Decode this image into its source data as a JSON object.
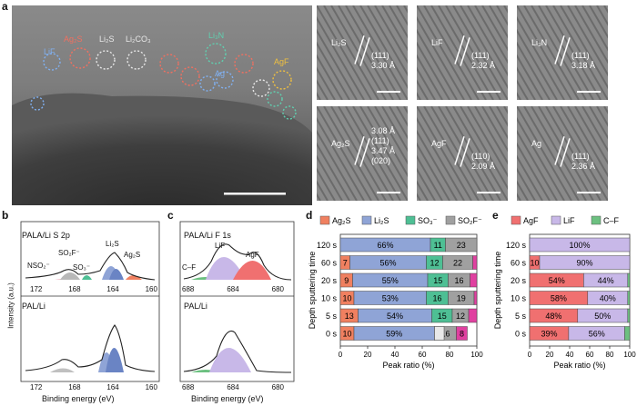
{
  "panel_labels": {
    "a": "a",
    "b": "b",
    "c": "c",
    "d": "d",
    "e": "e"
  },
  "panel_a": {
    "main_labels": [
      "Ag₂S",
      "Li₂S",
      "Li₂CO₃",
      "Li₃N",
      "LiF",
      "AgF",
      "Ag"
    ],
    "main_label_colors": [
      "#f07060",
      "#e8e8e8",
      "#e8e8e8",
      "#60d0b0",
      "#80b0f0",
      "#f0c040",
      "#80b0f0"
    ],
    "insets": [
      {
        "name": "Li₂S",
        "hkl": "(111)",
        "d": "3.30 Å"
      },
      {
        "name": "LiF",
        "hkl": "(111)",
        "d": "2.32 Å"
      },
      {
        "name": "Li₃N",
        "hkl": "(111)",
        "d": "3.18 Å"
      },
      {
        "name": "Ag₂S",
        "hkl": "(111)",
        "d": "3.08 Å",
        "hkl2": "(020)",
        "d2": "3.47 Å"
      },
      {
        "name": "AgF",
        "hkl": "(110)",
        "d": "2.09 Å"
      },
      {
        "name": "Ag",
        "hkl": "(111)",
        "d": "2.36 Å"
      }
    ]
  },
  "panel_b": {
    "title_top": "PALA/Li S 2p",
    "title_bottom": "PAL/Li",
    "peak_labels": [
      "NSO₂⁻",
      "SO₂F⁻",
      "SO₃⁻",
      "Li₂S",
      "Ag₂S"
    ],
    "ylabel": "Intensity (a.u.)",
    "xlabel": "Binding energy (eV)",
    "ticks_top": [
      "172",
      "168",
      "164",
      "160"
    ],
    "ticks_bottom": [
      "172",
      "168",
      "164",
      "160"
    ]
  },
  "panel_c": {
    "title_top": "PALA/Li F 1s",
    "title_bottom": "PAL/Li",
    "peak_labels": [
      "C–F",
      "LiF",
      "AgF"
    ],
    "xlabel": "Binding energy (eV)",
    "ticks_top": [
      "688",
      "684",
      "680"
    ],
    "ticks_bottom": [
      "688",
      "684",
      "680"
    ]
  },
  "chart_data": [
    {
      "type": "bar",
      "orientation": "horizontal-stacked",
      "panel": "d",
      "legend": [
        "Ag₂S",
        "Li₂S",
        "SO₃⁻",
        "SO₂F⁻"
      ],
      "colors": [
        "#f08060",
        "#8fa4d6",
        "#4ebf94",
        "#a0a0a0",
        "#e040a0"
      ],
      "categories": [
        "120 s",
        "60 s",
        "20 s",
        "10 s",
        "5 s",
        "0 s"
      ],
      "series": [
        {
          "name": "Ag₂S",
          "values": [
            0,
            7,
            9,
            10,
            13,
            10
          ]
        },
        {
          "name": "Li₂S",
          "values": [
            66,
            56,
            55,
            53,
            54,
            59
          ]
        },
        {
          "name": "SO₃⁻",
          "values": [
            11,
            12,
            15,
            16,
            15,
            0
          ]
        },
        {
          "name": "SO₂F⁻",
          "values": [
            23,
            22,
            16,
            19,
            12,
            16
          ]
        },
        {
          "name": "other",
          "values": [
            0,
            3,
            5,
            2,
            6,
            8
          ]
        }
      ],
      "extra_segments": [
        {
          "row": 5,
          "start": 69,
          "width": 7,
          "color": "#e8e8e8"
        }
      ],
      "labels": [
        [
          "",
          "66%",
          "11",
          "23",
          ""
        ],
        [
          "7",
          "56%",
          "12",
          "22",
          ""
        ],
        [
          "9",
          "55%",
          "15",
          "16",
          ""
        ],
        [
          "10",
          "53%",
          "16",
          "19",
          ""
        ],
        [
          "13",
          "54%",
          "15",
          "12",
          ""
        ],
        [
          "10",
          "59%",
          "",
          "16",
          "8"
        ]
      ],
      "xlabel": "Peak ratio (%)",
      "ylabel": "Depth sputtering time",
      "xticks": [
        "0",
        "20",
        "40",
        "60",
        "80",
        "100"
      ],
      "xlim": [
        0,
        100
      ]
    },
    {
      "type": "bar",
      "orientation": "horizontal-stacked",
      "panel": "e",
      "legend": [
        "AgF",
        "LiF",
        "C–F"
      ],
      "colors": [
        "#f07070",
        "#c8b8e8",
        "#6cc080"
      ],
      "categories": [
        "120 s",
        "60 s",
        "20 s",
        "10 s",
        "5 s",
        "0 s"
      ],
      "series": [
        {
          "name": "AgF",
          "values": [
            0,
            10,
            54,
            58,
            48,
            39
          ]
        },
        {
          "name": "LiF",
          "values": [
            100,
            90,
            44,
            40,
            50,
            56
          ]
        },
        {
          "name": "C–F",
          "values": [
            0,
            0,
            2,
            2,
            2,
            5
          ]
        }
      ],
      "labels": [
        [
          "",
          "100%",
          ""
        ],
        [
          "10",
          "90%",
          ""
        ],
        [
          "54%",
          "44%",
          ""
        ],
        [
          "58%",
          "40%",
          ""
        ],
        [
          "48%",
          "50%",
          ""
        ],
        [
          "39%",
          "56%",
          ""
        ]
      ],
      "xlabel": "Peak ratio (%)",
      "ylabel": "Depth sputtering time",
      "xticks": [
        "0",
        "20",
        "40",
        "60",
        "80",
        "100"
      ],
      "xlim": [
        0,
        100
      ]
    }
  ]
}
